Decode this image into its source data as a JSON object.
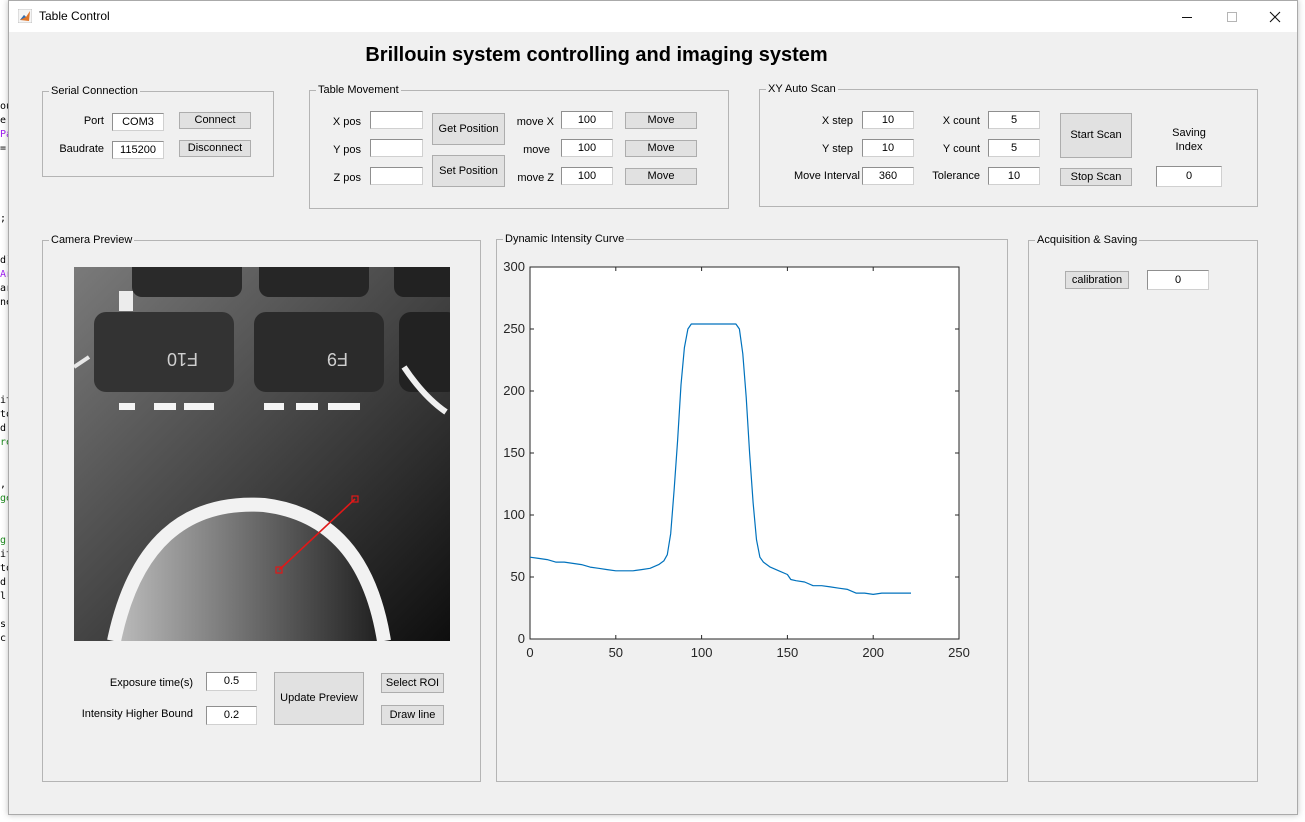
{
  "window": {
    "title": "Table Control"
  },
  "heading": "Brillouin system controlling and imaging system",
  "serial": {
    "legend": "Serial Connection",
    "port_label": "Port",
    "port_value": "COM3",
    "baud_label": "Baudrate",
    "baud_value": "115200",
    "connect": "Connect",
    "disconnect": "Disconnect"
  },
  "table": {
    "legend": "Table Movement",
    "xpos_label": "X pos",
    "ypos_label": "Y pos",
    "zpos_label": "Z pos",
    "xpos_value": "",
    "ypos_value": "",
    "zpos_value": "",
    "get_position": "Get Position",
    "set_position": "Set Position",
    "movex_label": "move X",
    "movey_label": "move",
    "movez_label": "move Z",
    "movex_value": "100",
    "movey_value": "100",
    "movez_value": "100",
    "move": "Move"
  },
  "xyscan": {
    "legend": "XY Auto Scan",
    "xstep_label": "X step",
    "xstep_value": "10",
    "ystep_label": "Y step",
    "ystep_value": "10",
    "interval_label": "Move Interval",
    "interval_value": "360",
    "xcount_label": "X count",
    "xcount_value": "5",
    "ycount_label": "Y count",
    "ycount_value": "5",
    "tolerance_label": "Tolerance",
    "tolerance_value": "10",
    "start_scan": "Start Scan",
    "stop_scan": "Stop Scan",
    "saving_index_label_1": "Saving",
    "saving_index_label_2": "Index",
    "saving_index_value": "0"
  },
  "camera": {
    "legend": "Camera Preview",
    "exposure_label": "Exposure time(s)",
    "exposure_value": "0.5",
    "intensity_label": "Intensity Higher Bound",
    "intensity_value": "0.2",
    "update_preview": "Update Preview",
    "select_roi": "Select ROI",
    "draw_line": "Draw line",
    "keycaps": [
      "F10",
      "F9"
    ]
  },
  "acquisition": {
    "legend": "Acquisition & Saving",
    "calibration": "calibration",
    "calibration_value": "0"
  },
  "chart_data": {
    "type": "line",
    "title": "Dynamic Intensity Curve",
    "xlabel": "",
    "ylabel": "",
    "xlim": [
      0,
      250
    ],
    "ylim": [
      0,
      300
    ],
    "xticks": [
      0,
      50,
      100,
      150,
      200,
      250
    ],
    "yticks": [
      0,
      50,
      100,
      150,
      200,
      250,
      300
    ],
    "grid": false,
    "line_color": "#0072bd",
    "series": [
      {
        "x": [
          0,
          5,
          10,
          15,
          20,
          25,
          30,
          35,
          40,
          45,
          50,
          55,
          60,
          65,
          70,
          75,
          78,
          80,
          82,
          84,
          86,
          88,
          90,
          92,
          94,
          96,
          100,
          105,
          110,
          115,
          120,
          122,
          124,
          126,
          128,
          130,
          132,
          134,
          136,
          138,
          140,
          145,
          150,
          152,
          155,
          160,
          165,
          170,
          175,
          180,
          185,
          190,
          195,
          200,
          205,
          210,
          215,
          220,
          222
        ],
        "y": [
          66,
          65,
          64,
          62,
          62,
          61,
          60,
          58,
          57,
          56,
          55,
          55,
          55,
          56,
          57,
          60,
          63,
          68,
          85,
          120,
          160,
          205,
          235,
          250,
          254,
          254,
          254,
          254,
          254,
          254,
          254,
          250,
          230,
          195,
          150,
          110,
          80,
          66,
          62,
          60,
          58,
          55,
          52,
          48,
          47,
          46,
          43,
          43,
          42,
          41,
          40,
          37,
          37,
          36,
          37,
          37,
          37,
          37,
          37
        ]
      }
    ]
  }
}
